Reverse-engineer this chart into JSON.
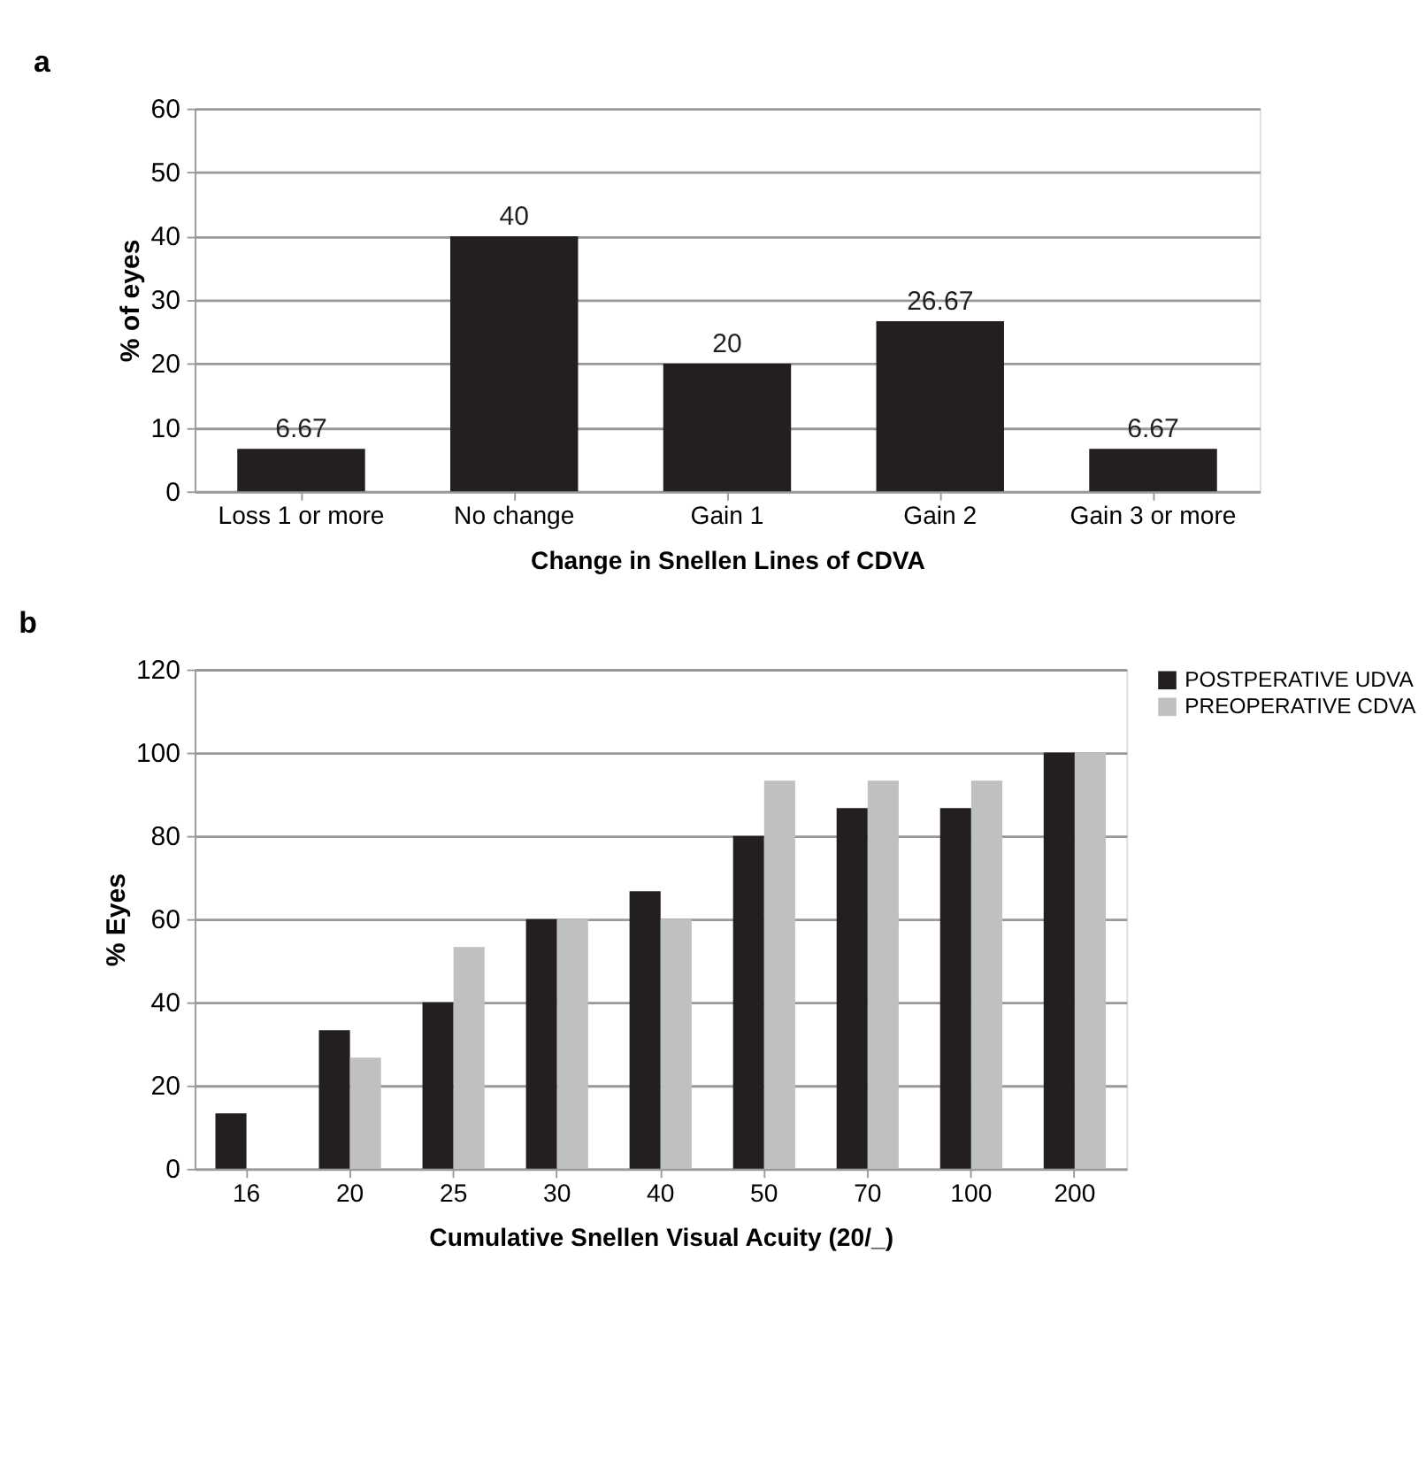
{
  "chart_data": [
    {
      "type": "bar",
      "title": "a",
      "xlabel": "Change in Snellen Lines of CDVA",
      "ylabel": "% of eyes",
      "categories": [
        "Loss 1 or more",
        "No change",
        "Gain 1",
        "Gain 2",
        "Gain 3 or more"
      ],
      "series": [
        {
          "color": "#231f20",
          "values": [
            6.67,
            40,
            20,
            26.67,
            6.67
          ]
        }
      ],
      "ylim": [
        0,
        60
      ],
      "yticks": [
        0,
        10,
        20,
        30,
        40,
        50,
        60
      ],
      "grid": "y",
      "data_labels": true,
      "legend": false
    },
    {
      "type": "bar",
      "title": "b",
      "xlabel": "Cumulative Snellen Visual Acuity (20/_)",
      "ylabel": "% Eyes",
      "categories": [
        "16",
        "20",
        "25",
        "30",
        "40",
        "50",
        "70",
        "100",
        "200"
      ],
      "series": [
        {
          "name": "POSTPERATIVE UDVA",
          "color": "#231f20",
          "values": [
            13.3,
            33.3,
            40,
            60,
            66.7,
            80,
            86.7,
            86.7,
            100
          ]
        },
        {
          "name": "PREOPERATIVE CDVA",
          "color": "#bfc0c2",
          "values": [
            null,
            26.7,
            53.3,
            60,
            60,
            93.3,
            93.3,
            93.3,
            100
          ]
        }
      ],
      "ylim": [
        0,
        120
      ],
      "yticks": [
        0,
        20,
        40,
        60,
        80,
        100,
        120
      ],
      "grid": "y",
      "legend": "right"
    }
  ]
}
